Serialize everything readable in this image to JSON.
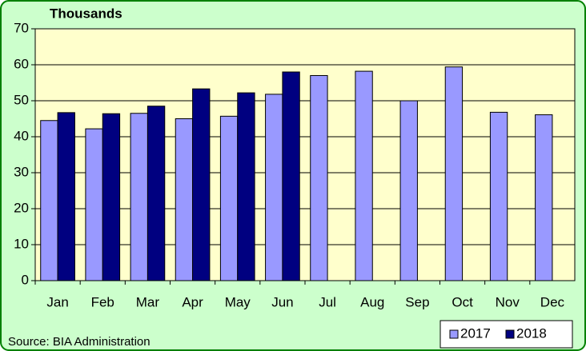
{
  "chart_data": {
    "type": "bar",
    "title": "Thousands",
    "source": "Source: BIA Administration",
    "categories": [
      "Jan",
      "Feb",
      "Mar",
      "Apr",
      "May",
      "Jun",
      "Jul",
      "Aug",
      "Sep",
      "Oct",
      "Nov",
      "Dec"
    ],
    "series": [
      {
        "name": "2017",
        "color": "#9999ff",
        "values": [
          44.5,
          42.2,
          46.5,
          45,
          45.7,
          51.8,
          57,
          58.2,
          50,
          59.4,
          46.8,
          46.1
        ]
      },
      {
        "name": "2018",
        "color": "#000080",
        "values": [
          46.7,
          46.4,
          48.5,
          53.3,
          52.2,
          58,
          null,
          null,
          null,
          null,
          null,
          null
        ]
      }
    ],
    "ylim": [
      0,
      70
    ],
    "yticks": [
      0,
      10,
      20,
      30,
      40,
      50,
      60,
      70
    ],
    "grid": true,
    "legend": "bottom-right"
  }
}
